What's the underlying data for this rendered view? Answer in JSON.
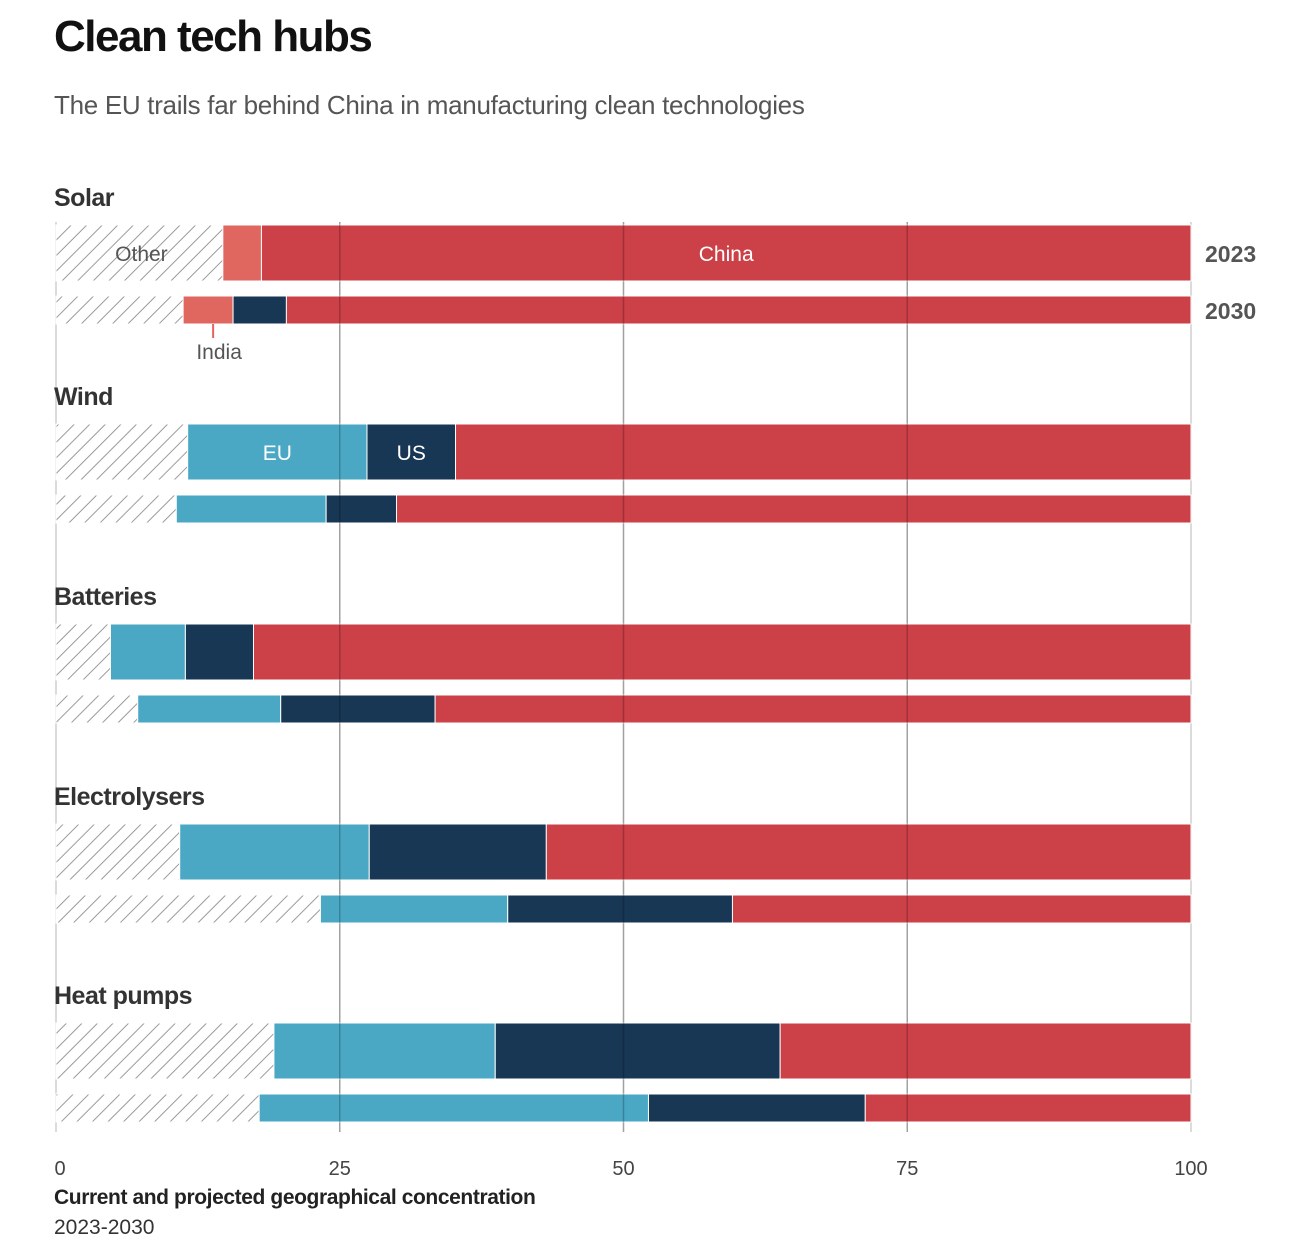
{
  "title": "Clean tech hubs",
  "subtitle": "The EU trails far behind China in manufacturing clean technologies",
  "colors": {
    "Other": "hatch",
    "India": "#e06660",
    "EU": "#4aa8c4",
    "US": "#183755",
    "China": "#cc4048"
  },
  "chart_data": {
    "type": "bar",
    "stacked": true,
    "orientation": "horizontal",
    "xlim": [
      0,
      100
    ],
    "xticks": [
      0,
      25,
      50,
      75,
      100
    ],
    "xlabel": "Current and projected geographical concentration",
    "xlabel_sub": "2023-2030",
    "years": [
      "2023",
      "2030"
    ],
    "segment_labels": {
      "Other": "Other",
      "India": "India",
      "EU": "EU",
      "US": "US",
      "China": "China"
    },
    "groups": [
      {
        "name": "Solar",
        "bars": [
          {
            "year": "2023",
            "segments": [
              {
                "name": "Other",
                "value": 14.7
              },
              {
                "name": "India",
                "value": 3.4
              },
              {
                "name": "China",
                "value": 81.9
              }
            ]
          },
          {
            "year": "2030",
            "segments": [
              {
                "name": "Other",
                "value": 11.2
              },
              {
                "name": "India",
                "value": 4.4
              },
              {
                "name": "US",
                "value": 4.7
              },
              {
                "name": "China",
                "value": 79.7
              }
            ]
          }
        ]
      },
      {
        "name": "Wind",
        "bars": [
          {
            "year": "2023",
            "segments": [
              {
                "name": "Other",
                "value": 11.6
              },
              {
                "name": "EU",
                "value": 15.8
              },
              {
                "name": "US",
                "value": 7.8
              },
              {
                "name": "China",
                "value": 64.8
              }
            ]
          },
          {
            "year": "2030",
            "segments": [
              {
                "name": "Other",
                "value": 10.6
              },
              {
                "name": "EU",
                "value": 13.2
              },
              {
                "name": "US",
                "value": 6.2
              },
              {
                "name": "China",
                "value": 70.0
              }
            ]
          }
        ]
      },
      {
        "name": "Batteries",
        "bars": [
          {
            "year": "2023",
            "segments": [
              {
                "name": "Other",
                "value": 4.8
              },
              {
                "name": "EU",
                "value": 6.6
              },
              {
                "name": "US",
                "value": 6.0
              },
              {
                "name": "China",
                "value": 82.6
              }
            ]
          },
          {
            "year": "2030",
            "segments": [
              {
                "name": "Other",
                "value": 7.2
              },
              {
                "name": "EU",
                "value": 12.6
              },
              {
                "name": "US",
                "value": 13.6
              },
              {
                "name": "China",
                "value": 66.6
              }
            ]
          }
        ]
      },
      {
        "name": "Electrolysers",
        "bars": [
          {
            "year": "2023",
            "segments": [
              {
                "name": "Other",
                "value": 10.9
              },
              {
                "name": "EU",
                "value": 16.7
              },
              {
                "name": "US",
                "value": 15.6
              },
              {
                "name": "China",
                "value": 56.8
              }
            ]
          },
          {
            "year": "2030",
            "segments": [
              {
                "name": "Other",
                "value": 23.3
              },
              {
                "name": "EU",
                "value": 16.5
              },
              {
                "name": "US",
                "value": 19.8
              },
              {
                "name": "China",
                "value": 40.4
              }
            ]
          }
        ]
      },
      {
        "name": "Heat pumps",
        "bars": [
          {
            "year": "2023",
            "segments": [
              {
                "name": "Other",
                "value": 19.2
              },
              {
                "name": "EU",
                "value": 19.5
              },
              {
                "name": "US",
                "value": 25.1
              },
              {
                "name": "China",
                "value": 36.2
              }
            ]
          },
          {
            "year": "2030",
            "segments": [
              {
                "name": "Other",
                "value": 17.9
              },
              {
                "name": "EU",
                "value": 34.3
              },
              {
                "name": "US",
                "value": 19.1
              },
              {
                "name": "China",
                "value": 28.7
              }
            ]
          }
        ]
      }
    ]
  }
}
